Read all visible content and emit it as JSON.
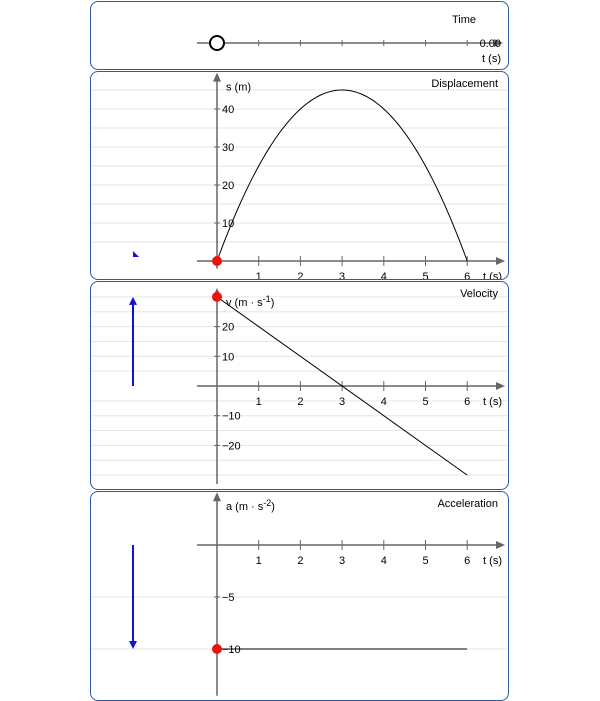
{
  "time_panel": {
    "title": "Time",
    "value": "0.00",
    "unit": "t (s)",
    "t": 0,
    "t_max": 6
  },
  "chart_data": [
    {
      "type": "line",
      "title": "Displacement",
      "ylabel": "s (m)",
      "xlabel": "t (s)",
      "x": [
        0,
        0.5,
        1,
        1.5,
        2,
        2.5,
        3,
        3.5,
        4,
        4.5,
        5,
        5.5,
        6
      ],
      "y": [
        0,
        13.75,
        25,
        33.75,
        40,
        43.75,
        45,
        43.75,
        40,
        33.75,
        25,
        13.75,
        0
      ],
      "xticks": [
        1,
        2,
        3,
        4,
        5,
        6
      ],
      "yticks": [
        10,
        20,
        30,
        40
      ],
      "xlim": [
        0,
        6.8
      ],
      "ylim": [
        -2,
        48
      ],
      "grid": true,
      "marker": {
        "x": 0,
        "y": 0
      }
    },
    {
      "type": "line",
      "title": "Velocity",
      "ylabel": "v (m · s",
      "ylabel_sup": "-1",
      "ylabel_end": ")",
      "xlabel": "t (s)",
      "x": [
        0,
        6
      ],
      "y": [
        30,
        -30
      ],
      "xticks": [
        1,
        2,
        3,
        4,
        5,
        6
      ],
      "yticks": [
        -20,
        -10,
        10,
        20
      ],
      "xlim": [
        0,
        6.8
      ],
      "ylim": [
        -33,
        31
      ],
      "grid": true,
      "marker": {
        "x": 0,
        "y": 30
      },
      "arrow_value": 30
    },
    {
      "type": "line",
      "title": "Acceleration",
      "ylabel": "a (m · s",
      "ylabel_sup": "-2",
      "ylabel_end": ")",
      "xlabel": "t (s)",
      "x": [
        0,
        6
      ],
      "y": [
        -10,
        -10
      ],
      "xticks": [
        1,
        2,
        3,
        4,
        5,
        6
      ],
      "yticks": [
        -10,
        -5
      ],
      "xlim": [
        0,
        6.8
      ],
      "ylim": [
        -14.5,
        4.5
      ],
      "grid": true,
      "marker": {
        "x": 0,
        "y": -10
      },
      "arrow_value": -10
    }
  ],
  "colors": {
    "frame": "#2a5d9f",
    "marker": "#ee1111",
    "vector": "#1010dd",
    "axis": "#666666",
    "grid": "#e6e6e6"
  }
}
